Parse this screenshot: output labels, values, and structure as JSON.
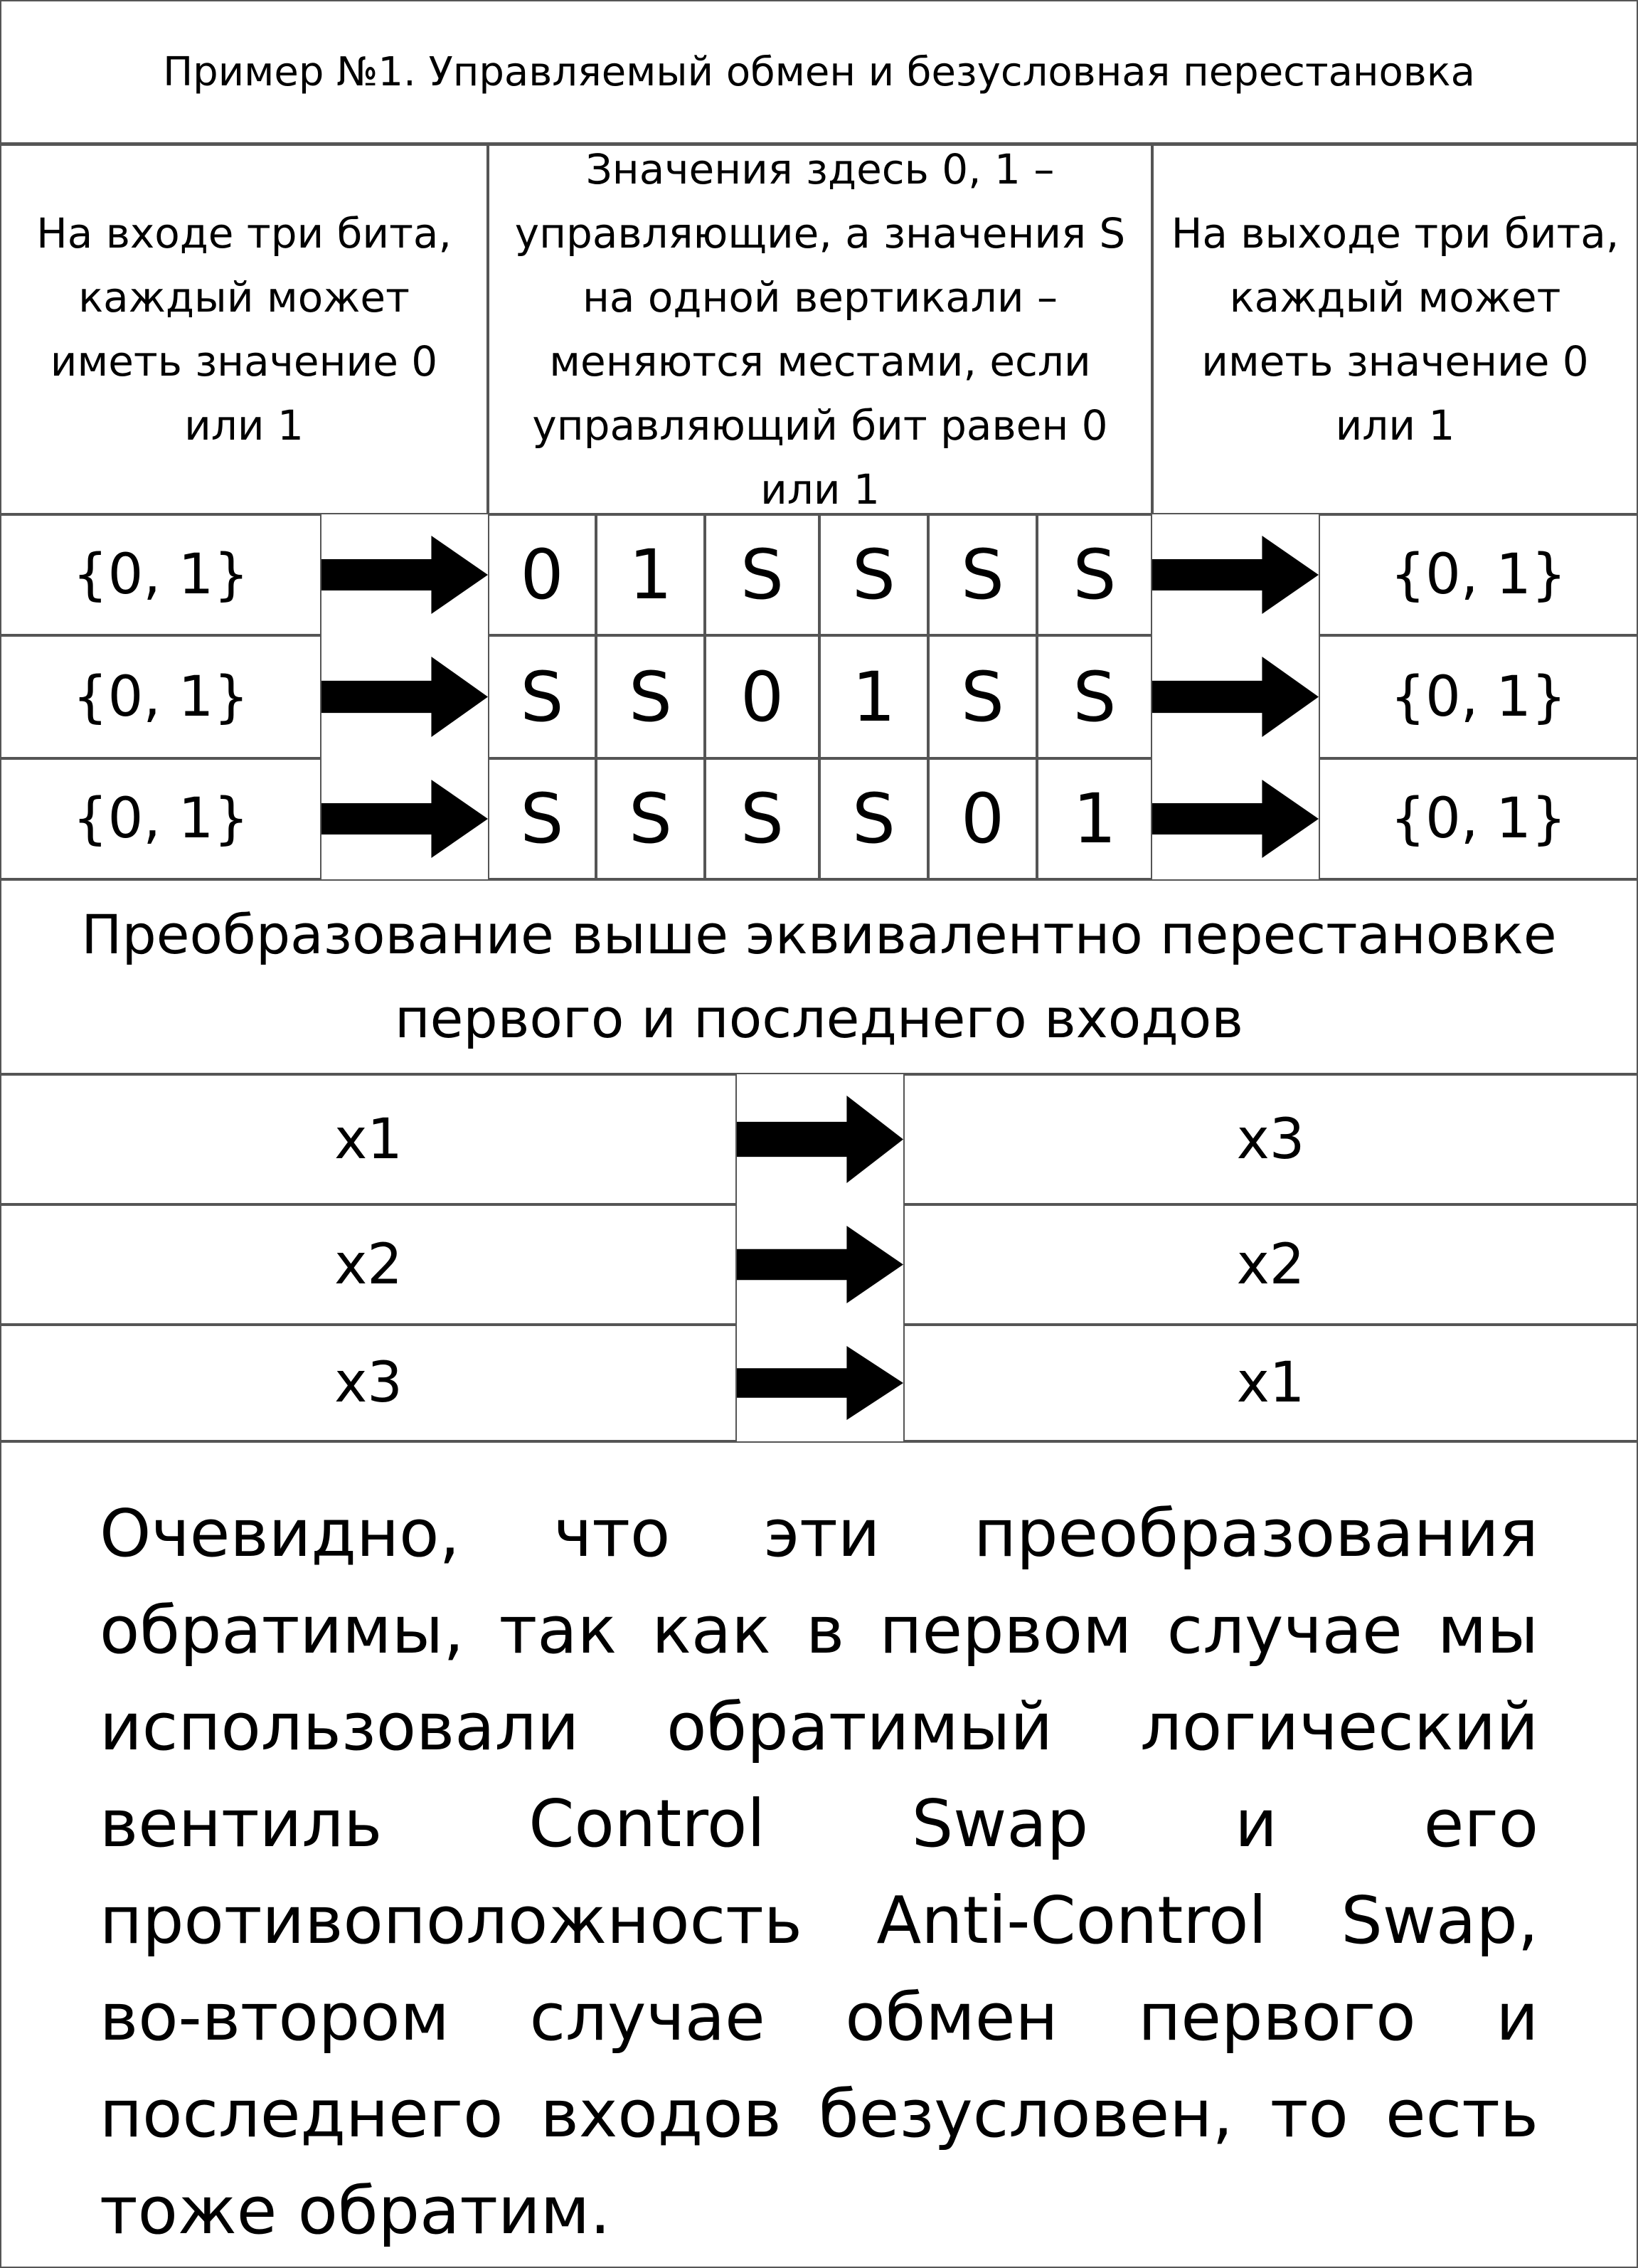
{
  "title": "Пример №1. Управляемый обмен и безусловная перестановка",
  "header": {
    "input_desc": "На входе три бита, каждый может иметь значение 0 или 1",
    "control_desc": "Значения здесь 0, 1 – управляющие, а значения S на одной вертикали – меняются местами, если управляющий бит равен 0 или 1",
    "output_desc": "На выходе три бита, каждый может иметь значение 0 или 1"
  },
  "gate_rows": [
    {
      "input": "{0, 1}",
      "cells": [
        "0",
        "1",
        "S",
        "S",
        "S",
        "S"
      ],
      "output": "{0, 1}"
    },
    {
      "input": "{0, 1}",
      "cells": [
        "S",
        "S",
        "0",
        "1",
        "S",
        "S"
      ],
      "output": "{0, 1}"
    },
    {
      "input": "{0, 1}",
      "cells": [
        "S",
        "S",
        "S",
        "S",
        "0",
        "1"
      ],
      "output": "{0, 1}"
    }
  ],
  "summary": "Преобразование выше эквивалентно перестановке первого и последнего входов",
  "perm_rows": [
    {
      "left": "x1",
      "right": "x3"
    },
    {
      "left": "x2",
      "right": "x2"
    },
    {
      "left": "x3",
      "right": "x1"
    }
  ],
  "conclusion": "Очевидно, что эти преобразования обратимы, так как в первом случае мы использовали обратимый логический вентиль Control Swap и его противоположность Anti-Control Swap, во-втором случае обмен первого и последнего входов безусловен, то есть тоже обратим."
}
